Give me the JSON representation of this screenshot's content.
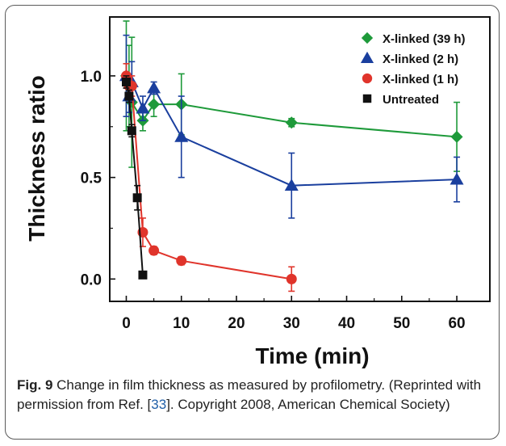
{
  "chart_data": {
    "type": "line",
    "xlabel": "Time (min)",
    "ylabel": "Thickness ratio",
    "xlim": [
      -3,
      66
    ],
    "ylim": [
      -0.11,
      1.29
    ],
    "xticks": [
      0,
      10,
      20,
      30,
      40,
      50,
      60
    ],
    "yticks": [
      0.0,
      0.5,
      1.0
    ],
    "ytick_labels": [
      "0.0",
      "0.5",
      "1.0"
    ],
    "legend_position": "top-right",
    "series": [
      {
        "name": "X-linked (39 h)",
        "color": "#1e9a3a",
        "marker": "diamond",
        "x": [
          0,
          0.5,
          1,
          3,
          5,
          10,
          30,
          60
        ],
        "y": [
          1.0,
          0.95,
          0.87,
          0.78,
          0.86,
          0.86,
          0.77,
          0.7
        ],
        "err": [
          0.27,
          0.2,
          0.32,
          0.05,
          0.06,
          0.15,
          0.02,
          0.17
        ]
      },
      {
        "name": "X-linked (2 h)",
        "color": "#1a3f9e",
        "marker": "triangle",
        "x": [
          0,
          0.5,
          1,
          3,
          5,
          10,
          30,
          60
        ],
        "y": [
          1.0,
          0.9,
          0.97,
          0.84,
          0.94,
          0.7,
          0.46,
          0.49
        ],
        "err": [
          0.2,
          0.08,
          0.1,
          0.06,
          0.03,
          0.2,
          0.16,
          0.11
        ]
      },
      {
        "name": "X-linked (1 h)",
        "color": "#e0342b",
        "marker": "circle",
        "x": [
          0,
          0.5,
          1,
          3,
          5,
          10,
          30
        ],
        "y": [
          1.0,
          0.95,
          0.95,
          0.23,
          0.14,
          0.09,
          0.0
        ],
        "err": [
          0.06,
          0.05,
          0.05,
          0.07,
          0.02,
          0.02,
          0.06
        ]
      },
      {
        "name": "Untreated",
        "color": "#111111",
        "marker": "square",
        "x": [
          0,
          0.5,
          1,
          2,
          3
        ],
        "y": [
          0.97,
          0.9,
          0.73,
          0.4,
          0.02
        ],
        "err": [
          0.03,
          0.03,
          0.03,
          0.06,
          0.0
        ]
      }
    ]
  },
  "caption": {
    "label": "Fig. 9",
    "text_before_ref": " Change in film thickness as measured by profilometry. (Reprinted with permission from Ref. [",
    "ref": "33",
    "text_after_ref": "]. Copyright 2008, American Chemical Society)"
  }
}
